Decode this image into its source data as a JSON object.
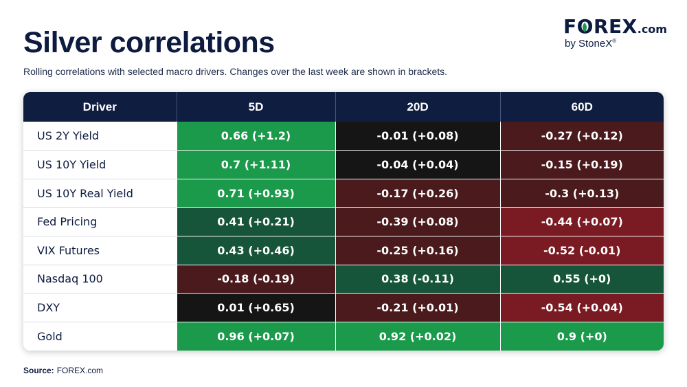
{
  "header": {
    "title": "Silver correlations",
    "subtitle": "Rolling correlations with selected macro drivers. Changes over the last week are shown in brackets."
  },
  "logo": {
    "word_left": "F",
    "word_o": "O",
    "word_right": "REX",
    "dotcom": ".com",
    "byline": "by StoneX",
    "registered": "®"
  },
  "source": {
    "label": "Source:",
    "value": "FOREX.com"
  },
  "colors": {
    "header_bg": "#0f1d40",
    "strong_positive": "#1a9a4a",
    "weak_positive": "#17553a",
    "neutral": "#151515",
    "weak_negative": "#4a1a1d",
    "strong_negative": "#7a1a22"
  },
  "chart_data": {
    "type": "table",
    "columns": [
      "Driver",
      "5D",
      "20D",
      "60D"
    ],
    "rows": [
      {
        "driver": "US 2Y Yield",
        "values": [
          {
            "text": "0.66 (+1.2)",
            "value": 0.66,
            "change": 1.2
          },
          {
            "text": "-0.01 (+0.08)",
            "value": -0.01,
            "change": 0.08
          },
          {
            "text": "-0.27 (+0.12)",
            "value": -0.27,
            "change": 0.12
          }
        ]
      },
      {
        "driver": "US 10Y Yield",
        "values": [
          {
            "text": "0.7 (+1.11)",
            "value": 0.7,
            "change": 1.11
          },
          {
            "text": "-0.04 (+0.04)",
            "value": -0.04,
            "change": 0.04
          },
          {
            "text": "-0.15 (+0.19)",
            "value": -0.15,
            "change": 0.19
          }
        ]
      },
      {
        "driver": "US 10Y Real Yield",
        "values": [
          {
            "text": "0.71 (+0.93)",
            "value": 0.71,
            "change": 0.93
          },
          {
            "text": "-0.17 (+0.26)",
            "value": -0.17,
            "change": 0.26
          },
          {
            "text": "-0.3 (+0.13)",
            "value": -0.3,
            "change": 0.13
          }
        ]
      },
      {
        "driver": "Fed Pricing",
        "values": [
          {
            "text": "0.41 (+0.21)",
            "value": 0.41,
            "change": 0.21
          },
          {
            "text": "-0.39 (+0.08)",
            "value": -0.39,
            "change": 0.08
          },
          {
            "text": "-0.44 (+0.07)",
            "value": -0.44,
            "change": 0.07
          }
        ]
      },
      {
        "driver": "VIX Futures",
        "values": [
          {
            "text": "0.43 (+0.46)",
            "value": 0.43,
            "change": 0.46
          },
          {
            "text": "-0.25 (+0.16)",
            "value": -0.25,
            "change": 0.16
          },
          {
            "text": "-0.52 (-0.01)",
            "value": -0.52,
            "change": -0.01
          }
        ]
      },
      {
        "driver": "Nasdaq 100",
        "values": [
          {
            "text": "-0.18 (-0.19)",
            "value": -0.18,
            "change": -0.19
          },
          {
            "text": "0.38 (-0.11)",
            "value": 0.38,
            "change": -0.11
          },
          {
            "text": "0.55 (+0)",
            "value": 0.55,
            "change": 0
          }
        ]
      },
      {
        "driver": "DXY",
        "values": [
          {
            "text": "0.01 (+0.65)",
            "value": 0.01,
            "change": 0.65
          },
          {
            "text": "-0.21 (+0.01)",
            "value": -0.21,
            "change": 0.01
          },
          {
            "text": "-0.54 (+0.04)",
            "value": -0.54,
            "change": 0.04
          }
        ]
      },
      {
        "driver": "Gold",
        "values": [
          {
            "text": "0.96 (+0.07)",
            "value": 0.96,
            "change": 0.07
          },
          {
            "text": "0.92 (+0.02)",
            "value": 0.92,
            "change": 0.02
          },
          {
            "text": "0.9 (+0)",
            "value": 0.9,
            "change": 0
          }
        ]
      }
    ]
  }
}
